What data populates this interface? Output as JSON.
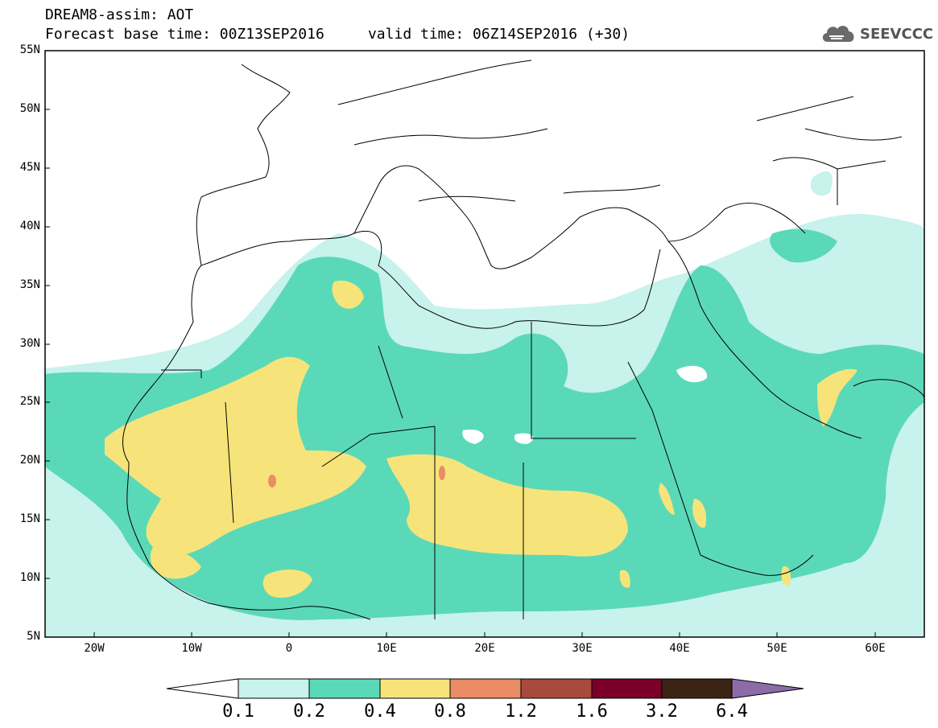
{
  "header": {
    "line1": "DREAM8-assim: AOT",
    "line2": "Forecast base time: 00Z13SEP2016     valid time: 06Z14SEP2016 (+30)"
  },
  "logo": {
    "text": "SEEVCCC",
    "icon": "cloud-icon"
  },
  "map": {
    "lat_labels": [
      "55N",
      "50N",
      "45N",
      "40N",
      "35N",
      "30N",
      "25N",
      "20N",
      "15N",
      "10N",
      "5N"
    ],
    "lon_labels": [
      "20W",
      "10W",
      "0",
      "10E",
      "20E",
      "30E",
      "40E",
      "50E",
      "60E"
    ],
    "extent": {
      "lon": [
        -25,
        65
      ],
      "lat": [
        5,
        55
      ]
    },
    "field": "AOT"
  },
  "colorbar": {
    "labels": [
      "0.1",
      "0.2",
      "0.4",
      "0.8",
      "1.2",
      "1.6",
      "3.2",
      "6.4"
    ],
    "colors": [
      "#c8f2ec",
      "#5ad9b9",
      "#f6e47a",
      "#ea8c64",
      "#a8493e",
      "#7a0027",
      "#3c2414",
      "#8c6ca8"
    ]
  },
  "colors": {
    "lvl1": "#c8f2ec",
    "lvl2": "#5ad9b9",
    "lvl3": "#f6e47a",
    "lvl4": "#ea8c64"
  }
}
